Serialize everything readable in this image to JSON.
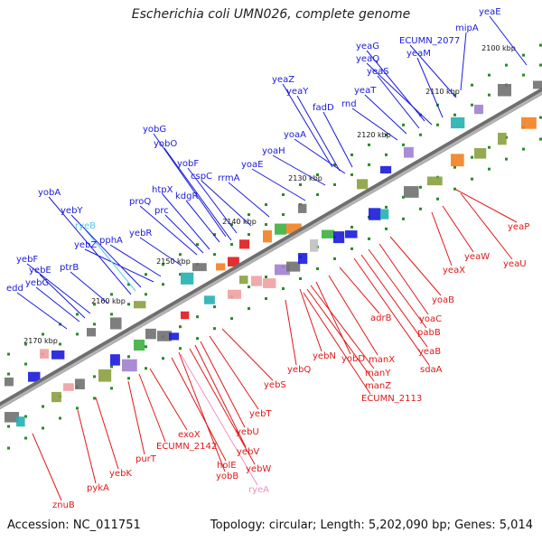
{
  "title": "Escherichia coli UMN026, complete genome",
  "footer": {
    "accession": "Accession: NC_011751",
    "summary": "Topology: circular; Length: 5,202,090 bp; Genes: 5,014"
  },
  "colors": {
    "forward_label": "#1a1adb",
    "reverse_label": "#e01818",
    "rna_forward": "#55c8e8",
    "rna_reverse": "#f090c0",
    "backbone": "#8a8a8a"
  },
  "position_marks": [
    "2100 kbp",
    "2110 kbp",
    "2120 kbp",
    "2130 kbp",
    "2140 kbp",
    "2150 kbp",
    "2160 kbp",
    "2170 kbp"
  ],
  "forward_genes": [
    "yeaE",
    "mipA",
    "ECUMN_2077",
    "yeaG",
    "yeaQ",
    "yeaM",
    "yeaS",
    "yeaT",
    "rnd",
    "fadD",
    "yeaZ",
    "yeaY",
    "yoaA",
    "yoaH",
    "yoaE",
    "rrmA",
    "cspC",
    "yobF",
    "yobG",
    "yobO",
    "kdgR",
    "htpX",
    "proQ",
    "prc",
    "yebR",
    "pphA",
    "yebZ",
    "ryeB",
    "yebY",
    "yobA",
    "ptrB",
    "yebF",
    "yebE",
    "yebG",
    "edd"
  ],
  "reverse_genes": [
    "yeaP",
    "yeaU",
    "yeaW",
    "yeaX",
    "yoaB",
    "yoaC",
    "pabB",
    "yeaB",
    "sdaA",
    "adrB",
    "manX",
    "yebN",
    "yebQ",
    "yobD",
    "manY",
    "manZ",
    "ECUMN_2113",
    "yebS",
    "yebT",
    "yebU",
    "yebV",
    "yebW",
    "ryeA",
    "yobB",
    "holE",
    "exoX",
    "ECUMN_2142",
    "purT",
    "yebK",
    "pykA",
    "znuB"
  ]
}
